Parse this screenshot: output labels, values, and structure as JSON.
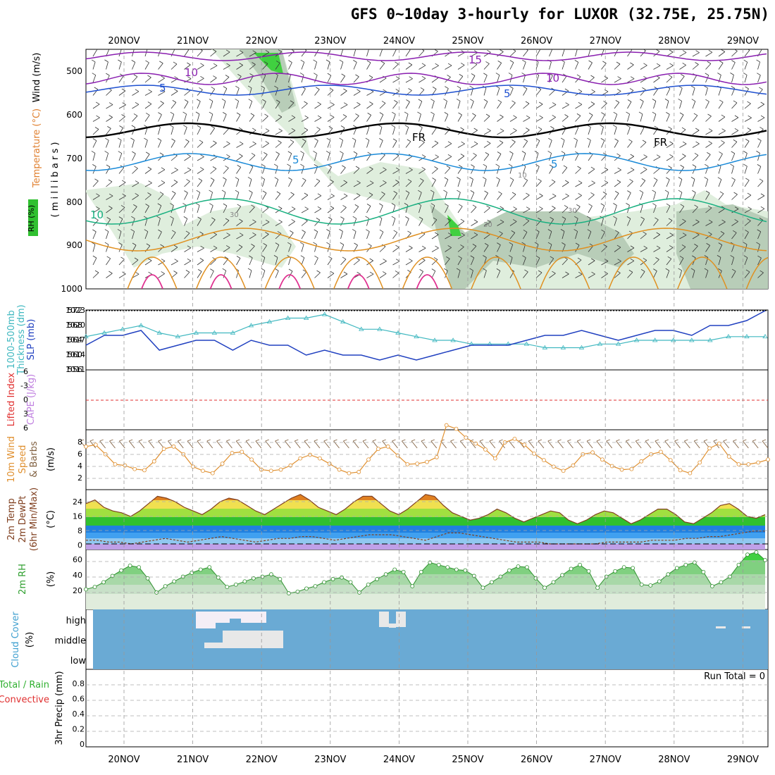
{
  "title": "GFS 0~10day 3-hourly for LUXOR (32.75E, 25.75N)",
  "colors": {
    "wind500": "#8a1fb0",
    "wind_blue": "#1e50d0",
    "freezing": "#000000",
    "t5": "#1a8ad8",
    "t10": "#18b080",
    "t15": "#e09020",
    "t20": "#e03090",
    "rh_light": "#dfeedd",
    "rh_mid": "#b8cdb8",
    "rh_dark": "#90a890",
    "rh_green": "#40d040",
    "thickness": "#2040c0",
    "slp": "#40b8c0",
    "li": "#e03030",
    "wind10": "#e09030",
    "barbs": "#806040",
    "cloud_bg": "#6aaad4",
    "cloud": "#f0eaf4",
    "rh2m": "#40c040"
  },
  "dates": [
    "20NOV",
    "21NOV",
    "22NOV",
    "23NOV",
    "24NOV",
    "25NOV",
    "26NOV",
    "27NOV",
    "28NOV",
    "29NOV"
  ],
  "panels": {
    "upper": {
      "ylabel_wind": "Wind (m/s)",
      "ylabel_temp": "Temperature (°C)",
      "ylabel_rh": "RH (%)",
      "ylabel_mb": "( m i l l i b a r s )",
      "levels": [
        "500",
        "600",
        "700",
        "800",
        "900",
        "1000"
      ],
      "contour_labels": {
        "m10": "10",
        "m15": "15",
        "m10b": "10",
        "m5a": "5",
        "m5b": "5",
        "fr1": "FR",
        "fr2": "FR",
        "p5a": "5",
        "p5b": "5",
        "p10": "10",
        "rh30a": "30",
        "rh30b": "30",
        "rh30c": "30",
        "rh10": "10"
      }
    },
    "thickness": {
      "ylabel1": "1000-500mb",
      "ylabel2": "Thickness (dm)",
      "ylabel3": "SLP (mb)",
      "left_ticks": [
        "572",
        "568",
        "564",
        "560",
        "556"
      ],
      "right_ticks": [
        "1023",
        "1020",
        "1017",
        "1014",
        "1011"
      ]
    },
    "cape": {
      "ylabel1": "Lifted Index",
      "ylabel2": "CAPE (J/kg)",
      "ticks": [
        "-6",
        "-3",
        "0",
        "3",
        "6"
      ]
    },
    "wind10m": {
      "ylabel1": "10m Wind",
      "ylabel2": "Speed",
      "ylabel3": "& Barbs",
      "unit": "(m/s)",
      "ticks": [
        "8",
        "6",
        "4",
        "2"
      ]
    },
    "temp2m": {
      "ylabel1": "2m Temp",
      "ylabel2": "2m DewPt",
      "ylabel3": "(6hr Min/Max)",
      "unit": "(°C)",
      "ticks": [
        "24",
        "16",
        "8",
        "0"
      ]
    },
    "rh2m": {
      "ylabel": "2m RH",
      "unit": "(%)",
      "ticks": [
        "60",
        "40",
        "20"
      ]
    },
    "cloud": {
      "ylabel1": "Cloud Cover",
      "unit": "(%)",
      "levels": [
        "high",
        "middle",
        "low"
      ]
    },
    "precip": {
      "ylabel1": "Total / Rain",
      "ylabel2": "Convective",
      "ylabel3": "3hr Precip (mm)",
      "run_total": "Run Total = 0",
      "ticks": [
        "0.8",
        "0.6",
        "0.4",
        "0.2",
        "0"
      ]
    }
  },
  "chart_data": [
    {
      "type": "line",
      "title": "1000-500mb Thickness (dm) / SLP (mb)",
      "series": [
        {
          "name": "1000-500mb Thickness (dm)",
          "values": [
            565,
            566,
            567,
            568,
            566,
            565,
            566,
            566,
            566,
            568,
            569,
            570,
            570,
            571,
            569,
            567,
            567,
            566,
            565,
            564,
            564,
            563,
            563,
            563,
            563,
            562,
            562,
            562,
            563,
            563,
            564,
            564,
            564,
            564,
            564,
            565,
            565,
            565
          ]
        },
        {
          "name": "SLP (mb)",
          "values": [
            1016,
            1018,
            1018,
            1019,
            1015,
            1016,
            1017,
            1017,
            1015,
            1017,
            1016,
            1016,
            1014,
            1015,
            1014,
            1014,
            1013,
            1014,
            1013,
            1014,
            1015,
            1016,
            1016,
            1016,
            1017,
            1018,
            1018,
            1019,
            1018,
            1017,
            1018,
            1019,
            1019,
            1018,
            1020,
            1020,
            1021,
            1023
          ]
        }
      ]
    },
    {
      "type": "line",
      "title": "10m Wind Speed (m/s)",
      "values": [
        5.5,
        5.8,
        4.2,
        2.5,
        2.3,
        1.7,
        1.5,
        3.0,
        5.1,
        5.5,
        4.2,
        2.1,
        1.4,
        1.0,
        2.6,
        4.4,
        4.6,
        3.3,
        1.6,
        1.4,
        1.6,
        2.3,
        3.5,
        4.1,
        3.5,
        2.6,
        1.6,
        1.0,
        1.2,
        3.3,
        5.1,
        5.5,
        4.0,
        2.5,
        2.6,
        2.9,
        3.7,
        9.1,
        8.5,
        7.0,
        6.0,
        5.0,
        3.5,
        6.2,
        6.8,
        5.8,
        4.3,
        3.2,
        2.1,
        1.4,
        2.3,
        4.2,
        4.5,
        3.3,
        2.2,
        1.6,
        1.7,
        3.0,
        4.2,
        4.6,
        3.2,
        1.5,
        1.0,
        2.8,
        5.2,
        6.0,
        3.8,
        2.5,
        2.5,
        2.8,
        3.3
      ]
    },
    {
      "type": "area",
      "title": "2m Temp / 2m DewPt (°C)",
      "series": [
        {
          "name": "2m Temp",
          "values": [
            22,
            24,
            20,
            18,
            17,
            15,
            18,
            22,
            26,
            25,
            23,
            20,
            18,
            16,
            19,
            23,
            25,
            24,
            21,
            18,
            16,
            19,
            22,
            25,
            27,
            24,
            20,
            18,
            16,
            19,
            23,
            26,
            26,
            22,
            18,
            16,
            19,
            23,
            27,
            26,
            21,
            17,
            15,
            13,
            14,
            16,
            19,
            17,
            14,
            12,
            14,
            16,
            18,
            17,
            13,
            11,
            13,
            16,
            18,
            17,
            14,
            11,
            13,
            16,
            19,
            19,
            16,
            12,
            11,
            14,
            17,
            21,
            22,
            19,
            15,
            14,
            16
          ]
        },
        {
          "name": "2m DewPt",
          "values": [
            2,
            2,
            1,
            1,
            0,
            1,
            2,
            3,
            2,
            1,
            2,
            3,
            4,
            3,
            2,
            1,
            2,
            3,
            3,
            4,
            4,
            3,
            2,
            3,
            4,
            5,
            5,
            5,
            4,
            3,
            2,
            4,
            6,
            6,
            5,
            4,
            3,
            2,
            1,
            1,
            1,
            0,
            0,
            0,
            0,
            0,
            1,
            1,
            1,
            1,
            2,
            2,
            2,
            3,
            3,
            4,
            4,
            5,
            6,
            7,
            7
          ]
        }
      ]
    },
    {
      "type": "area",
      "title": "2m RH (%)",
      "values": [
        21,
        24,
        30,
        38,
        45,
        51,
        49,
        35,
        17,
        25,
        31,
        37,
        42,
        46,
        49,
        36,
        24,
        27,
        31,
        35,
        37,
        40,
        34,
        16,
        18,
        22,
        25,
        30,
        34,
        36,
        30,
        17,
        27,
        34,
        40,
        46,
        43,
        25,
        43,
        55,
        52,
        49,
        46,
        45,
        38,
        23,
        30,
        37,
        45,
        50,
        49,
        35,
        23,
        30,
        39,
        47,
        52,
        44,
        23,
        37,
        44,
        49,
        48,
        27,
        26,
        31,
        40,
        48,
        52,
        55,
        43,
        25,
        30,
        37,
        52,
        65,
        68,
        58
      ]
    },
    {
      "type": "line",
      "title": "Lifted Index",
      "values": [
        0,
        0,
        0,
        0,
        0,
        0,
        0,
        0,
        0,
        0,
        0,
        0,
        0,
        0,
        0,
        0,
        0,
        0,
        0,
        0,
        0,
        0,
        0,
        0,
        0,
        0,
        0,
        0,
        0,
        0,
        0,
        0,
        0,
        0,
        0,
        0,
        0,
        0,
        0,
        0,
        0,
        0,
        0,
        0,
        0,
        0,
        0,
        0,
        0,
        0,
        0,
        0,
        0,
        0,
        0,
        0,
        0,
        0,
        0,
        0,
        0,
        0,
        0,
        0,
        0,
        0,
        0,
        0,
        0,
        0,
        0,
        0,
        0,
        0,
        0,
        0,
        0,
        0,
        0,
        0
      ]
    },
    {
      "type": "bar",
      "title": "3hr Precip (mm)",
      "ylim": [
        0,
        1
      ],
      "values": [
        0,
        0,
        0,
        0,
        0,
        0,
        0,
        0,
        0,
        0
      ]
    }
  ]
}
